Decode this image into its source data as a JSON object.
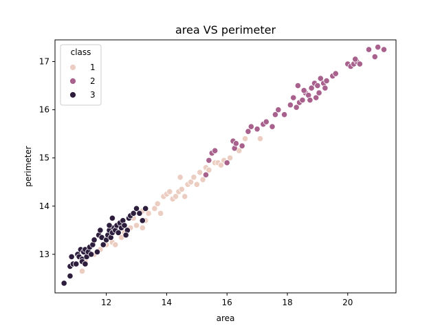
{
  "chart_data": {
    "type": "scatter",
    "title": "area VS perimeter",
    "xlabel": "area",
    "ylabel": "perimeter",
    "xlim": [
      10.3,
      21.6
    ],
    "ylim": [
      12.2,
      17.45
    ],
    "xticks": [
      "12",
      "14",
      "16",
      "18",
      "20"
    ],
    "yticks": [
      "13",
      "14",
      "15",
      "16",
      "17"
    ],
    "legend": {
      "title": "class",
      "position": "top-left"
    },
    "series": [
      {
        "name": "1",
        "color": "#eccdc1",
        "points": [
          [
            11.2,
            12.65
          ],
          [
            11.3,
            12.85
          ],
          [
            11.6,
            13.0
          ],
          [
            11.8,
            13.1
          ],
          [
            12.0,
            13.2
          ],
          [
            12.2,
            13.25
          ],
          [
            12.3,
            13.2
          ],
          [
            12.5,
            13.35
          ],
          [
            12.6,
            13.45
          ],
          [
            12.7,
            13.5
          ],
          [
            12.8,
            13.55
          ],
          [
            13.0,
            13.6
          ],
          [
            13.2,
            13.55
          ],
          [
            13.3,
            13.7
          ],
          [
            13.4,
            13.85
          ],
          [
            13.6,
            13.95
          ],
          [
            13.7,
            14.05
          ],
          [
            13.8,
            13.85
          ],
          [
            13.9,
            14.2
          ],
          [
            14.0,
            14.25
          ],
          [
            14.1,
            14.3
          ],
          [
            14.2,
            14.15
          ],
          [
            14.3,
            14.2
          ],
          [
            14.4,
            14.3
          ],
          [
            14.5,
            14.35
          ],
          [
            14.6,
            14.2
          ],
          [
            14.7,
            14.45
          ],
          [
            14.8,
            14.5
          ],
          [
            14.9,
            14.6
          ],
          [
            15.0,
            14.45
          ],
          [
            15.1,
            14.7
          ],
          [
            15.2,
            14.55
          ],
          [
            15.3,
            14.8
          ],
          [
            15.4,
            14.75
          ],
          [
            15.6,
            14.9
          ],
          [
            15.7,
            14.9
          ],
          [
            15.8,
            14.85
          ],
          [
            15.9,
            14.95
          ],
          [
            16.1,
            15.0
          ],
          [
            16.4,
            15.15
          ],
          [
            16.6,
            15.4
          ],
          [
            17.1,
            15.4
          ],
          [
            14.45,
            14.6
          ],
          [
            13.2,
            13.9
          ],
          [
            12.9,
            13.75
          ]
        ]
      },
      {
        "name": "2",
        "color": "#a8608c",
        "points": [
          [
            15.3,
            14.65
          ],
          [
            15.4,
            14.95
          ],
          [
            15.5,
            15.1
          ],
          [
            15.6,
            15.15
          ],
          [
            16.0,
            14.9
          ],
          [
            16.2,
            15.35
          ],
          [
            16.25,
            15.2
          ],
          [
            16.3,
            15.3
          ],
          [
            16.5,
            15.25
          ],
          [
            16.7,
            15.55
          ],
          [
            16.8,
            15.65
          ],
          [
            17.0,
            15.6
          ],
          [
            17.2,
            15.7
          ],
          [
            17.3,
            15.75
          ],
          [
            17.5,
            15.65
          ],
          [
            17.6,
            15.9
          ],
          [
            17.7,
            16.0
          ],
          [
            17.9,
            15.9
          ],
          [
            18.1,
            16.1
          ],
          [
            18.2,
            16.25
          ],
          [
            18.3,
            16.05
          ],
          [
            18.4,
            16.15
          ],
          [
            18.5,
            16.2
          ],
          [
            18.6,
            16.35
          ],
          [
            18.7,
            16.3
          ],
          [
            18.8,
            16.45
          ],
          [
            18.9,
            16.55
          ],
          [
            19.0,
            16.5
          ],
          [
            19.1,
            16.65
          ],
          [
            19.2,
            16.55
          ],
          [
            19.3,
            16.6
          ],
          [
            19.5,
            16.7
          ],
          [
            19.6,
            16.75
          ],
          [
            18.35,
            16.5
          ],
          [
            18.55,
            16.4
          ],
          [
            18.75,
            16.2
          ],
          [
            18.95,
            16.25
          ],
          [
            19.05,
            16.35
          ],
          [
            19.25,
            16.45
          ],
          [
            20.0,
            16.95
          ],
          [
            20.1,
            16.9
          ],
          [
            20.2,
            16.95
          ],
          [
            20.3,
            17.0
          ],
          [
            20.4,
            16.95
          ],
          [
            20.7,
            17.25
          ],
          [
            20.9,
            17.1
          ],
          [
            21.0,
            17.3
          ],
          [
            21.2,
            17.25
          ],
          [
            20.25,
            17.05
          ]
        ]
      },
      {
        "name": "3",
        "color": "#2d1e3e",
        "points": [
          [
            10.6,
            12.4
          ],
          [
            10.8,
            12.55
          ],
          [
            10.8,
            12.75
          ],
          [
            10.9,
            12.8
          ],
          [
            10.85,
            12.95
          ],
          [
            11.0,
            12.8
          ],
          [
            11.05,
            13.0
          ],
          [
            11.1,
            12.95
          ],
          [
            11.15,
            13.1
          ],
          [
            11.2,
            12.9
          ],
          [
            11.25,
            13.05
          ],
          [
            11.3,
            13.1
          ],
          [
            11.35,
            12.95
          ],
          [
            11.4,
            13.05
          ],
          [
            11.45,
            13.15
          ],
          [
            11.5,
            13.0
          ],
          [
            11.55,
            13.2
          ],
          [
            11.6,
            13.3
          ],
          [
            11.7,
            13.05
          ],
          [
            11.75,
            13.4
          ],
          [
            11.8,
            13.5
          ],
          [
            11.85,
            13.35
          ],
          [
            11.9,
            13.2
          ],
          [
            12.0,
            13.3
          ],
          [
            12.05,
            13.4
          ],
          [
            12.1,
            13.5
          ],
          [
            12.15,
            13.35
          ],
          [
            12.2,
            13.45
          ],
          [
            12.25,
            13.55
          ],
          [
            12.3,
            13.5
          ],
          [
            12.35,
            13.6
          ],
          [
            12.4,
            13.45
          ],
          [
            12.45,
            13.65
          ],
          [
            12.5,
            13.55
          ],
          [
            12.55,
            13.7
          ],
          [
            12.6,
            13.6
          ],
          [
            12.7,
            13.5
          ],
          [
            12.75,
            13.75
          ],
          [
            12.8,
            13.8
          ],
          [
            12.9,
            13.85
          ],
          [
            13.0,
            13.95
          ],
          [
            13.1,
            13.85
          ],
          [
            13.2,
            13.7
          ],
          [
            13.3,
            13.95
          ],
          [
            12.1,
            13.6
          ],
          [
            12.2,
            13.75
          ],
          [
            11.2,
            12.85
          ],
          [
            11.3,
            12.8
          ],
          [
            12.65,
            13.4
          ]
        ]
      }
    ]
  }
}
